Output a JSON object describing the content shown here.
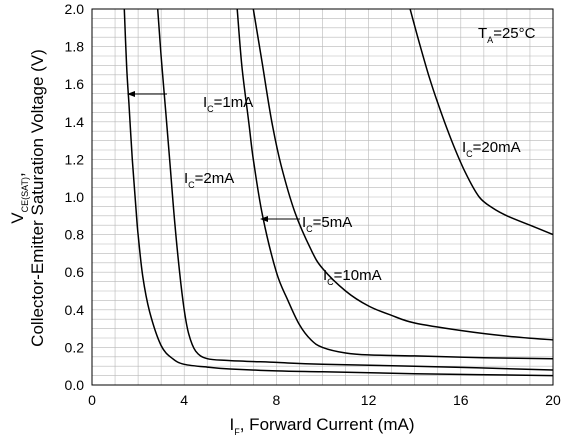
{
  "chart_data": {
    "type": "line",
    "xlabel": {
      "main": "I",
      "sub": "F",
      "rest": ", Forward Current (mA)"
    },
    "ylabel": {
      "line1_main": "V",
      "line1_sub": "CE(SAT)",
      "line1_rest": ",",
      "line2": "Collector-Emitter Saturation Voltage (V)"
    },
    "condition": {
      "main": "T",
      "sub": "A",
      "rest": "=25°C"
    },
    "xlim": [
      0,
      20
    ],
    "ylim": [
      0,
      2.0
    ],
    "x_ticks": [
      "0",
      "4",
      "8",
      "12",
      "16",
      "20"
    ],
    "y_ticks": [
      "0.0",
      "0.2",
      "0.4",
      "0.6",
      "0.8",
      "1.0",
      "1.2",
      "1.4",
      "1.6",
      "1.8",
      "2.0"
    ],
    "grid": true,
    "series": [
      {
        "name": "IC=1mA",
        "label": {
          "main": "I",
          "sub": "C",
          "rest": "=1mA"
        },
        "x": [
          1.4,
          1.5,
          1.6,
          1.75,
          1.9,
          2.0,
          2.2,
          2.5,
          3.0,
          3.5,
          4.0,
          5.0,
          6.0,
          8.0,
          10.0,
          14.0,
          20.0
        ],
        "y": [
          2.0,
          1.7,
          1.5,
          1.2,
          0.95,
          0.8,
          0.58,
          0.39,
          0.21,
          0.14,
          0.11,
          0.095,
          0.085,
          0.075,
          0.07,
          0.06,
          0.05
        ]
      },
      {
        "name": "IC=2mA",
        "label": {
          "main": "I",
          "sub": "C",
          "rest": "=2mA"
        },
        "x": [
          2.85,
          3.0,
          3.2,
          3.4,
          3.6,
          3.8,
          4.0,
          4.2,
          4.5,
          5.0,
          6.0,
          8.0,
          10.0,
          14.0,
          20.0
        ],
        "y": [
          2.0,
          1.75,
          1.45,
          1.15,
          0.85,
          0.6,
          0.4,
          0.27,
          0.18,
          0.14,
          0.13,
          0.12,
          0.11,
          0.1,
          0.08
        ]
      },
      {
        "name": "IC=5mA",
        "label": {
          "main": "I",
          "sub": "C",
          "rest": "=5mA"
        },
        "x": [
          6.3,
          6.5,
          6.8,
          7.0,
          7.4,
          8.0,
          8.5,
          9.0,
          9.5,
          10.0,
          11.0,
          12.0,
          14.0,
          17.0,
          20.0
        ],
        "y": [
          2.0,
          1.7,
          1.4,
          1.2,
          0.9,
          0.6,
          0.45,
          0.32,
          0.24,
          0.2,
          0.17,
          0.16,
          0.155,
          0.145,
          0.14
        ]
      },
      {
        "name": "IC=10mA",
        "label": {
          "main": "I",
          "sub": "C",
          "rest": "=10mA"
        },
        "x": [
          7.0,
          7.4,
          7.8,
          8.2,
          8.8,
          9.5,
          10.0,
          11.0,
          12.0,
          13.0,
          14.0,
          16.0,
          18.0,
          20.0
        ],
        "y": [
          2.0,
          1.7,
          1.4,
          1.17,
          0.92,
          0.72,
          0.62,
          0.5,
          0.42,
          0.37,
          0.33,
          0.29,
          0.26,
          0.24
        ]
      },
      {
        "name": "IC=20mA",
        "label": {
          "main": "I",
          "sub": "C",
          "rest": "=20mA"
        },
        "x": [
          13.8,
          14.2,
          14.6,
          15.0,
          15.6,
          16.2,
          16.8,
          17.4,
          18.0,
          19.0,
          20.0
        ],
        "y": [
          2.0,
          1.82,
          1.65,
          1.5,
          1.3,
          1.13,
          1.0,
          0.94,
          0.9,
          0.85,
          0.8
        ]
      }
    ]
  }
}
